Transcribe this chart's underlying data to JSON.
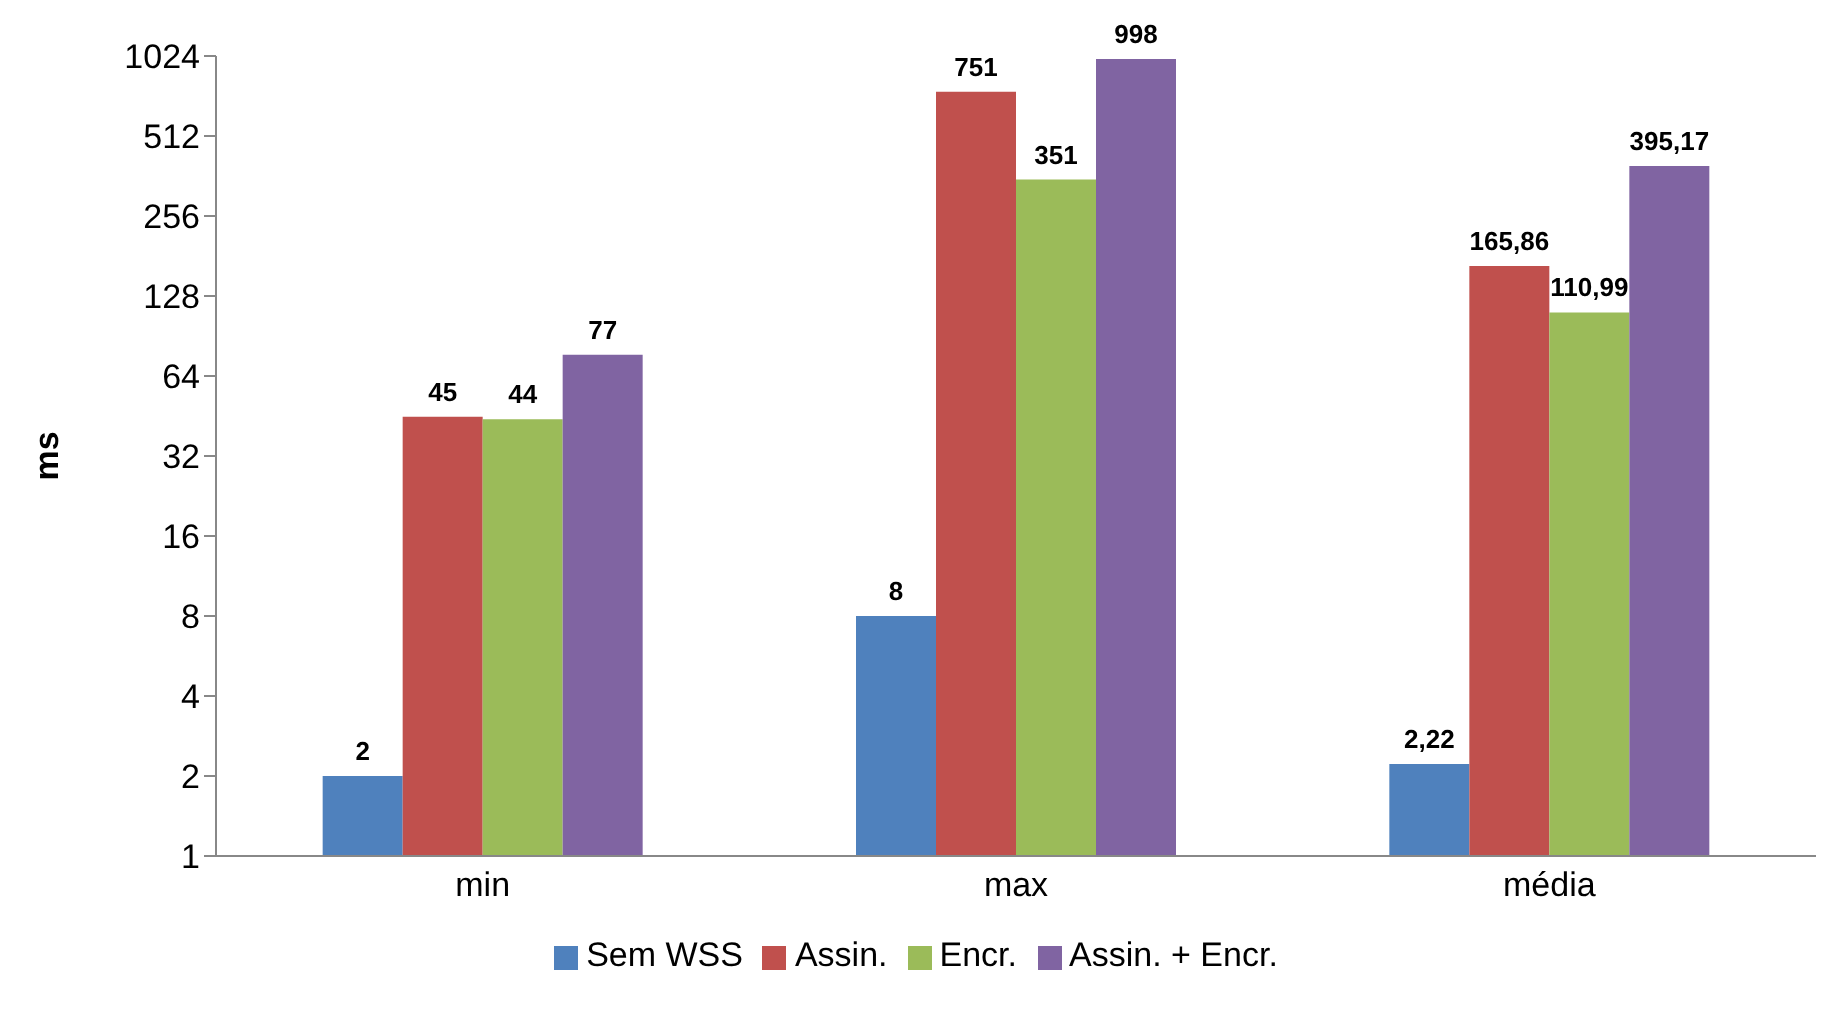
{
  "chart_data": {
    "type": "bar",
    "ylabel": "ms",
    "categories": [
      "min",
      "max",
      "média"
    ],
    "series": [
      {
        "name": "Sem WSS",
        "color": "#4f81bd",
        "values": [
          2,
          8,
          2.22
        ],
        "value_labels": [
          "2",
          "8",
          "2,22"
        ]
      },
      {
        "name": "Assin.",
        "color": "#c0504d",
        "values": [
          45,
          751,
          165.86
        ],
        "value_labels": [
          "45",
          "751",
          "165,86"
        ]
      },
      {
        "name": "Encr.",
        "color": "#9bbb59",
        "values": [
          44,
          351,
          110.99
        ],
        "value_labels": [
          "44",
          "351",
          "110,99"
        ]
      },
      {
        "name": "Assin. + Encr.",
        "color": "#8064a2",
        "values": [
          77,
          998,
          395.17
        ],
        "value_labels": [
          "77",
          "998",
          "395,17"
        ]
      }
    ],
    "log": true,
    "ylim": [
      1,
      1024
    ],
    "yticks": [
      1,
      2,
      4,
      8,
      16,
      32,
      64,
      128,
      256,
      512,
      1024
    ],
    "grid": false,
    "legend": "bottom"
  }
}
